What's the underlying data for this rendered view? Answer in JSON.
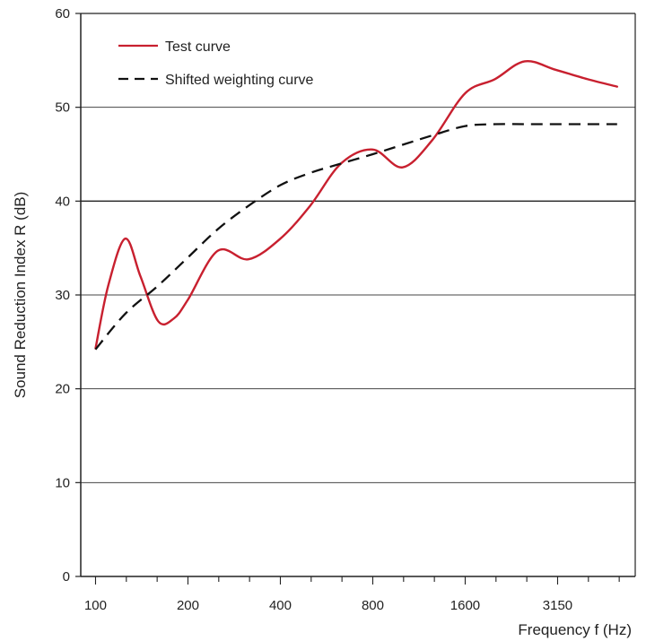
{
  "chart_data": {
    "type": "line",
    "ylabel": "Sound Reduction Index R (dB)",
    "xlabel": "Frequency f (Hz)",
    "ylim": [
      0,
      60
    ],
    "yticks": [
      "0",
      "10",
      "20",
      "30",
      "40",
      "50",
      "60"
    ],
    "xtick_labels": [
      "100",
      "200",
      "400",
      "800",
      "1600",
      "3150"
    ],
    "x_log2_ticks": [
      0,
      1,
      2,
      3,
      4,
      5
    ],
    "x_log2_range": [
      -0.16,
      5.84
    ],
    "grid": "horizontal",
    "legend_position": "top-left",
    "series": [
      {
        "name": "Test curve",
        "color": "#c8202f",
        "style": "solid",
        "points": [
          [
            100,
            24.3
          ],
          [
            110,
            31
          ],
          [
            125,
            36
          ],
          [
            140,
            32
          ],
          [
            160,
            27.2
          ],
          [
            180,
            27.5
          ],
          [
            200,
            29.5
          ],
          [
            250,
            34.7
          ],
          [
            315,
            33.8
          ],
          [
            400,
            36
          ],
          [
            500,
            39.5
          ],
          [
            630,
            44
          ],
          [
            800,
            45.5
          ],
          [
            1000,
            43.6
          ],
          [
            1250,
            46.5
          ],
          [
            1600,
            51.5
          ],
          [
            2000,
            53
          ],
          [
            2500,
            54.9
          ],
          [
            3150,
            54
          ],
          [
            4000,
            53
          ],
          [
            5000,
            52.2
          ]
        ]
      },
      {
        "name": "Shifted weighting curve",
        "color": "#111111",
        "style": "dashed",
        "points": [
          [
            100,
            24.2
          ],
          [
            125,
            28
          ],
          [
            160,
            31
          ],
          [
            200,
            34
          ],
          [
            250,
            37
          ],
          [
            315,
            39.5
          ],
          [
            400,
            41.7
          ],
          [
            500,
            43
          ],
          [
            630,
            44
          ],
          [
            800,
            45
          ],
          [
            1000,
            46
          ],
          [
            1250,
            47
          ],
          [
            1600,
            48
          ],
          [
            2000,
            48.2
          ],
          [
            2500,
            48.2
          ],
          [
            3150,
            48.2
          ],
          [
            4000,
            48.2
          ],
          [
            5000,
            48.2
          ]
        ]
      }
    ]
  }
}
